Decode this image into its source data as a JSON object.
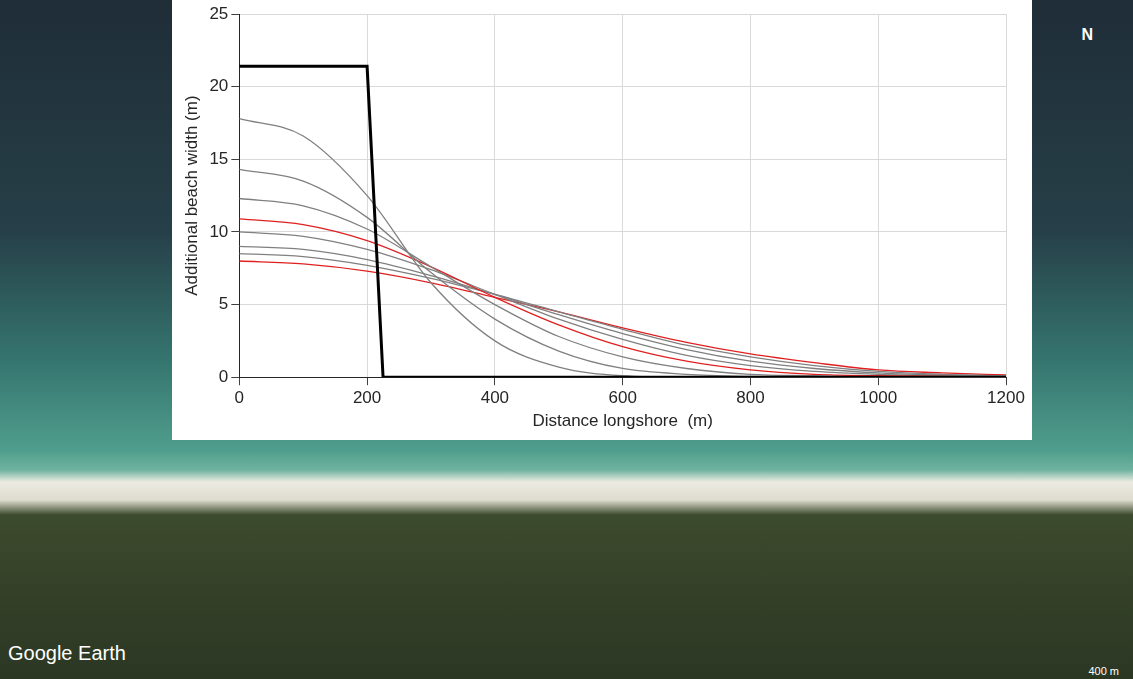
{
  "chart_data": {
    "type": "line",
    "x_label": "Distance longshore  (m)",
    "y_label": "Additional beach width (m)",
    "xlim": [
      0,
      1200
    ],
    "xticks": [
      0,
      200,
      400,
      600,
      800,
      1000,
      1200
    ],
    "ylim": [
      0,
      25
    ],
    "yticks": [
      0,
      5,
      10,
      15,
      20,
      25
    ],
    "grid": true,
    "annotations": [
      "Google Earth",
      "400 m",
      "N"
    ],
    "x": [
      0,
      100,
      200,
      300,
      400,
      500,
      600,
      700,
      800,
      900,
      1000,
      1100,
      1200
    ],
    "series": [
      {
        "color": "#000000",
        "x": [
          0,
          200,
          225,
          1200
        ],
        "values": [
          21.4,
          21.4,
          0,
          0
        ]
      },
      {
        "color": "#808080",
        "values": [
          17.8,
          16.6,
          12.5,
          6.5,
          2.5,
          0.7,
          0.1,
          0,
          0,
          0,
          0,
          0,
          0
        ]
      },
      {
        "color": "#808080",
        "values": [
          14.3,
          13.5,
          11.0,
          7.2,
          4.0,
          1.8,
          0.6,
          0.2,
          0.05,
          0,
          0,
          0,
          0
        ]
      },
      {
        "color": "#808080",
        "values": [
          12.3,
          11.8,
          10.2,
          7.6,
          5.0,
          2.8,
          1.4,
          0.6,
          0.2,
          0.1,
          0,
          0,
          0
        ]
      },
      {
        "color": "#e02020",
        "values": [
          10.9,
          10.5,
          9.4,
          7.6,
          5.5,
          3.6,
          2.1,
          1.1,
          0.5,
          0.2,
          0.1,
          0.05,
          0
        ]
      },
      {
        "color": "#808080",
        "values": [
          10.0,
          9.7,
          8.8,
          7.4,
          5.7,
          4.0,
          2.6,
          1.5,
          0.8,
          0.4,
          0.2,
          0.1,
          0.05
        ]
      },
      {
        "color": "#808080",
        "values": [
          9.0,
          8.8,
          8.1,
          7.0,
          5.7,
          4.3,
          3.0,
          1.9,
          1.1,
          0.6,
          0.3,
          0.15,
          0.1
        ]
      },
      {
        "color": "#808080",
        "values": [
          8.5,
          8.3,
          7.7,
          6.8,
          5.7,
          4.5,
          3.3,
          2.2,
          1.4,
          0.8,
          0.4,
          0.2,
          0.1
        ]
      },
      {
        "color": "#e02020",
        "values": [
          8.0,
          7.8,
          7.3,
          6.5,
          5.5,
          4.5,
          3.4,
          2.4,
          1.6,
          1.0,
          0.5,
          0.3,
          0.15
        ]
      }
    ]
  }
}
